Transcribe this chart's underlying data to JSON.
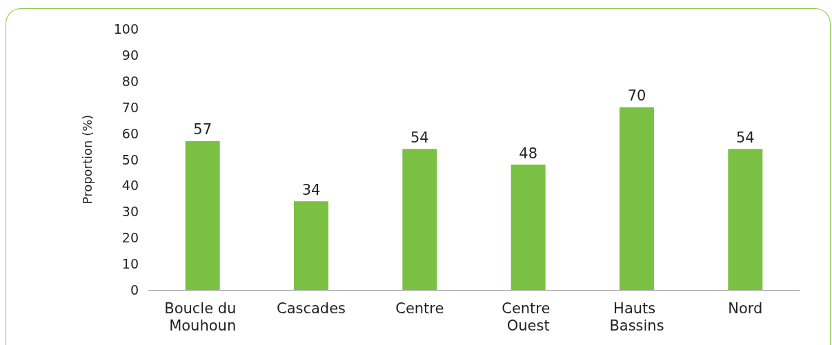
{
  "chart_data": {
    "type": "bar",
    "ylabel": "Proportion (%)",
    "categories": [
      "Boucle du Mouhoun",
      "Cascades",
      "Centre",
      "Centre Ouest",
      "Hauts Bassins",
      "Nord"
    ],
    "values": [
      57,
      34,
      54,
      48,
      70,
      54
    ],
    "color": "#7ac143",
    "ylim": [
      0,
      100
    ],
    "yticks": [
      0,
      10,
      20,
      30,
      40,
      50,
      60,
      70,
      80,
      90,
      100
    ],
    "grid": false,
    "data_labels": true
  }
}
